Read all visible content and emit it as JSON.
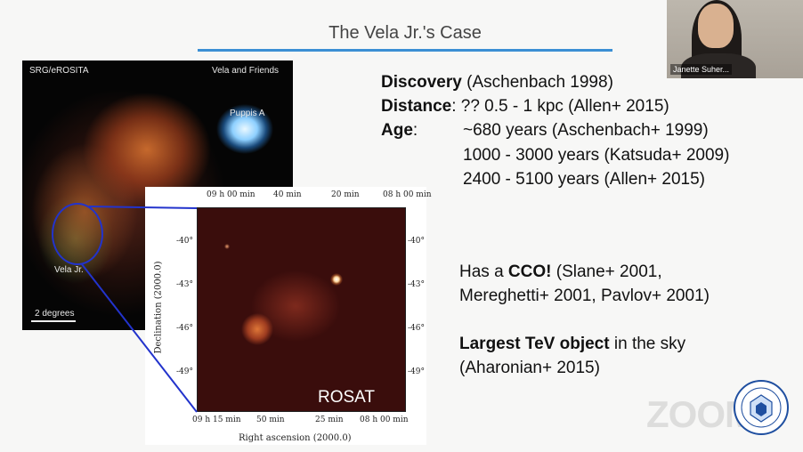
{
  "slide": {
    "title": "The Vela Jr.'s Case",
    "erosita": {
      "source_label": "SRG/eROSITA",
      "corner_label": "Vela and Friends",
      "puppis_label": "Puppis A",
      "velajr_label": "Vela Jr.",
      "scale_label": "2 degrees"
    },
    "rosat": {
      "badge": "ROSAT",
      "top_ticks": [
        "09 h 00 min",
        "40 min",
        "20 min",
        "08 h 00 min"
      ],
      "bottom_ticks": [
        "09 h 15 min",
        "50 min",
        "25 min",
        "08 h 00 min"
      ],
      "left_ticks": [
        "-40°",
        "-43°",
        "-46°",
        "-49°"
      ],
      "right_ticks": [
        "-40°",
        "-43°",
        "-46°",
        "-49°"
      ],
      "xlabel": "Right ascension (2000.0)",
      "ylabel": "Declination (2000.0)"
    },
    "facts": {
      "discovery_label": "Discovery",
      "discovery_value": " (Aschenbach 1998)",
      "distance_label": "Distance",
      "distance_value": ": ?? 0.5 - 1 kpc (Allen+ 2015)",
      "age_label": "Age",
      "age_colon": ":",
      "ages": [
        "~680 years (Aschenbach+ 1999)",
        "1000 - 3000 years (Katsuda+ 2009)",
        "2400 - 5100 years (Allen+ 2015)"
      ]
    },
    "cco": {
      "prefix": "Has a ",
      "bold": "CCO!",
      "line1_rest": " (Slane+ 2001,",
      "line2": "Mereghetti+ 2001, Pavlov+ 2001)"
    },
    "tev": {
      "bold": "Largest TeV object",
      "line1_rest": " in the sky",
      "line2": "(Aharonian+ 2015)"
    }
  },
  "video": {
    "participant_name": "Janette Suher..."
  },
  "watermark": {
    "zoom_text": "ZOOM",
    "seal_name": "university-seal-icon"
  },
  "colors": {
    "accent_rule": "#3b8fd4",
    "callout": "#2233cc"
  }
}
